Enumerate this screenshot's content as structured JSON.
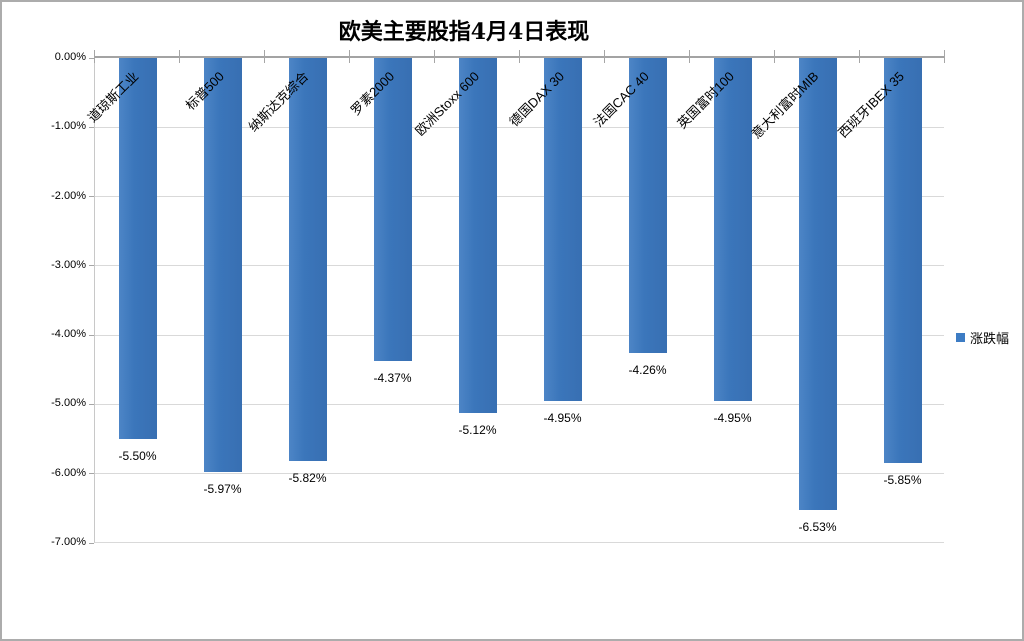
{
  "chart_data": {
    "type": "bar",
    "title": "欧美主要股指4月4日表现",
    "categories": [
      "道琼斯工业",
      "标普500",
      "纳斯达克综合",
      "罗素2000",
      "欧洲Stoxx 600",
      "德国DAX 30",
      "法国CAC 40",
      "英国富时100",
      "意大利富时MIB",
      "西班牙IBEX 35"
    ],
    "series": [
      {
        "name": "涨跌幅",
        "values": [
          -5.5,
          -5.97,
          -5.82,
          -4.37,
          -5.12,
          -4.95,
          -4.26,
          -4.95,
          -6.53,
          -5.85
        ]
      }
    ],
    "data_labels": [
      "-5.50%",
      "-5.97%",
      "-5.82%",
      "-4.37%",
      "-5.12%",
      "-4.95%",
      "-4.26%",
      "-4.95%",
      "-6.53%",
      "-5.85%"
    ],
    "xlabel": "",
    "ylabel": "",
    "ylim": [
      -7,
      0
    ],
    "y_ticks": [
      "0.00%",
      "-1.00%",
      "-2.00%",
      "-3.00%",
      "-4.00%",
      "-5.00%",
      "-6.00%",
      "-7.00%"
    ],
    "grid": true,
    "legend_position": "right",
    "bar_color": "#3b76bb",
    "background_color": "#ffffff"
  }
}
